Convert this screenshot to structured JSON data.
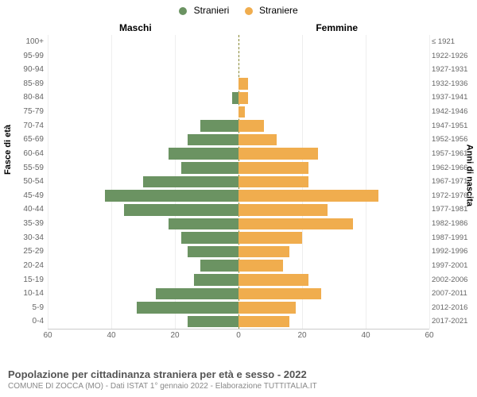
{
  "legend": {
    "male": {
      "label": "Stranieri",
      "color": "#6b9362"
    },
    "female": {
      "label": "Straniere",
      "color": "#f0ad4e"
    }
  },
  "headers": {
    "left": "Maschi",
    "right": "Femmine"
  },
  "axis_labels": {
    "left": "Fasce di età",
    "right": "Anni di nascita"
  },
  "chart": {
    "type": "population-pyramid",
    "xlim": 60,
    "xticks": [
      60,
      40,
      20,
      0,
      20,
      40,
      60
    ],
    "bar_color_left": "#6b9362",
    "bar_color_right": "#f0ad4e",
    "background_color": "#ffffff",
    "grid_color": "#eeeeee",
    "centerline_color": "#888833",
    "rows": [
      {
        "age": "100+",
        "birth": "≤ 1921",
        "m": 0,
        "f": 0
      },
      {
        "age": "95-99",
        "birth": "1922-1926",
        "m": 0,
        "f": 0
      },
      {
        "age": "90-94",
        "birth": "1927-1931",
        "m": 0,
        "f": 0
      },
      {
        "age": "85-89",
        "birth": "1932-1936",
        "m": 0,
        "f": 3
      },
      {
        "age": "80-84",
        "birth": "1937-1941",
        "m": 2,
        "f": 3
      },
      {
        "age": "75-79",
        "birth": "1942-1946",
        "m": 0,
        "f": 2
      },
      {
        "age": "70-74",
        "birth": "1947-1951",
        "m": 12,
        "f": 8
      },
      {
        "age": "65-69",
        "birth": "1952-1956",
        "m": 16,
        "f": 12
      },
      {
        "age": "60-64",
        "birth": "1957-1961",
        "m": 22,
        "f": 25
      },
      {
        "age": "55-59",
        "birth": "1962-1966",
        "m": 18,
        "f": 22
      },
      {
        "age": "50-54",
        "birth": "1967-1971",
        "m": 30,
        "f": 22
      },
      {
        "age": "45-49",
        "birth": "1972-1976",
        "m": 42,
        "f": 44
      },
      {
        "age": "40-44",
        "birth": "1977-1981",
        "m": 36,
        "f": 28
      },
      {
        "age": "35-39",
        "birth": "1982-1986",
        "m": 22,
        "f": 36
      },
      {
        "age": "30-34",
        "birth": "1987-1991",
        "m": 18,
        "f": 20
      },
      {
        "age": "25-29",
        "birth": "1992-1996",
        "m": 16,
        "f": 16
      },
      {
        "age": "20-24",
        "birth": "1997-2001",
        "m": 12,
        "f": 14
      },
      {
        "age": "15-19",
        "birth": "2002-2006",
        "m": 14,
        "f": 22
      },
      {
        "age": "10-14",
        "birth": "2007-2011",
        "m": 26,
        "f": 26
      },
      {
        "age": "5-9",
        "birth": "2012-2016",
        "m": 32,
        "f": 18
      },
      {
        "age": "0-4",
        "birth": "2017-2021",
        "m": 16,
        "f": 16
      }
    ]
  },
  "footer": {
    "title": "Popolazione per cittadinanza straniera per età e sesso - 2022",
    "subtitle": "COMUNE DI ZOCCA (MO) - Dati ISTAT 1° gennaio 2022 - Elaborazione TUTTITALIA.IT"
  }
}
